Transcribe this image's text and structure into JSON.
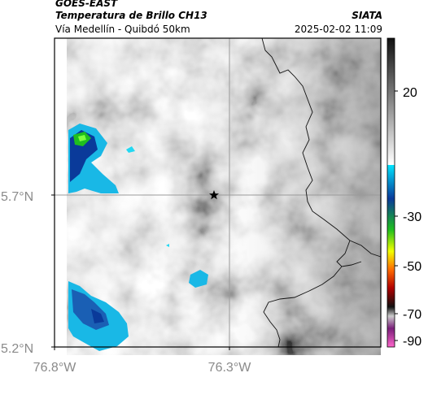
{
  "header": {
    "satellite": "GOES-EAST",
    "product": "Temperatura de Brillo CH13",
    "agency": "SIATA",
    "region": "Vía Medellín - Quibdó 50km",
    "datetime": "2025-02-02 11:09"
  },
  "map": {
    "lat_ticks": [
      "5.7°N",
      "5.2°N"
    ],
    "lon_ticks": [
      "76.8°W",
      "76.3°W"
    ],
    "marker": "star-marker",
    "colors": {
      "frame": "#000000",
      "grid": "#9a9a9a",
      "tick_text": "#8a8a8a"
    }
  },
  "colorbar": {
    "ticks": [
      "20",
      "-30",
      "-50",
      "-70",
      "-90"
    ],
    "stops": [
      "#111111",
      "#ffffff",
      "#00e5ff",
      "#0a3a9a",
      "#1fbf1f",
      "#f2ff00",
      "#ff6a00",
      "#b00000",
      "#111111",
      "#cccccc",
      "#7a1f7a",
      "#ff66cc"
    ]
  }
}
